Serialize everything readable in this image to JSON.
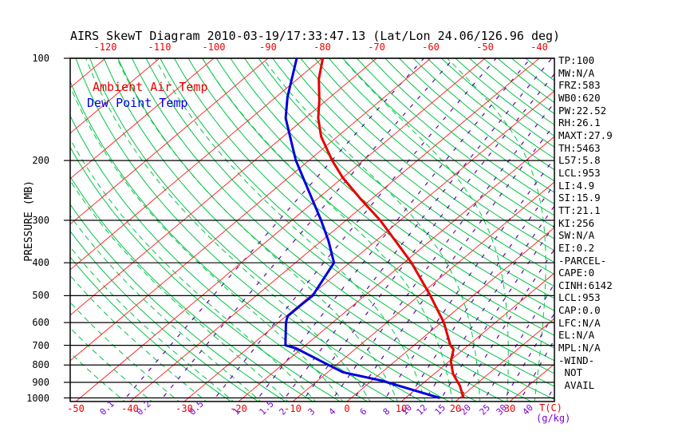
{
  "title": "AIRS SkewT Diagram 2010-03-19/17:33:47.13 (Lat/Lon 24.06/126.96 deg)",
  "legend": {
    "ambient_label": "Ambient Air Temp",
    "dew_label": "Dew Point Temp"
  },
  "axes": {
    "pressure_title": "PRESSURE (MB)",
    "pressure_ticks": [
      100,
      200,
      300,
      400,
      500,
      600,
      700,
      800,
      900,
      1000
    ],
    "top_temp_ticks": [
      -120,
      -110,
      -100,
      -90,
      -80,
      -70,
      -60,
      -50,
      -40
    ],
    "bottom_temp_ticks": [
      -50,
      -40,
      -30,
      -20,
      -10,
      0,
      10,
      20,
      30
    ],
    "temp_unit": "T(C)",
    "mixr_unit": "(g/kg)",
    "mixr_ticks": [
      0.1,
      0.2,
      0.5,
      1,
      1.5,
      2,
      3,
      4,
      6,
      8,
      10,
      12,
      15,
      20,
      25,
      30,
      40
    ]
  },
  "side_panel": [
    "TP:100",
    "MW:N/A",
    "FRZ:583",
    "WB0:620",
    "PW:22.52",
    "RH:26.1",
    "MAXT:27.9",
    "TH:5463",
    "L57:5.8",
    "LCL:953",
    "LI:4.9",
    "SI:15.9",
    "TT:21.1",
    "KI:256",
    "SW:N/A",
    "EI:0.2",
    "-PARCEL-",
    "CAPE:0",
    "CINH:6142",
    "LCL:953",
    "CAP:0.0",
    "LFC:N/A",
    "EL:N/A",
    "MPL:N/A",
    "-WIND-",
    " NOT",
    " AVAIL"
  ],
  "chart_data": {
    "type": "line",
    "variant": "skew-t-log-p",
    "title": "AIRS SkewT Diagram 2010-03-19/17:33:47.13 (Lat/Lon 24.06/126.96 deg)",
    "xlabel": "T(C)",
    "ylabel": "PRESSURE (MB)",
    "x_range_c_at_surface": [
      -50,
      30
    ],
    "pressure_range_mb": [
      100,
      1000
    ],
    "grid_on": true,
    "legend_position": "top-left-inside",
    "series": [
      {
        "name": "Ambient Air Temp",
        "color": "#e60000",
        "points_p_t": [
          [
            100,
            -79.9
          ],
          [
            115,
            -76.1
          ],
          [
            133,
            -71.3
          ],
          [
            150,
            -67.6
          ],
          [
            170,
            -63.0
          ],
          [
            200,
            -55.7
          ],
          [
            225,
            -49.9
          ],
          [
            260,
            -41.9
          ],
          [
            300,
            -33.7
          ],
          [
            350,
            -25.6
          ],
          [
            400,
            -18.6
          ],
          [
            500,
            -7.9
          ],
          [
            600,
            0.5
          ],
          [
            700,
            6.7
          ],
          [
            720,
            8.2
          ],
          [
            780,
            10.3
          ],
          [
            850,
            13.5
          ],
          [
            920,
            17.3
          ],
          [
            1000,
            20.7
          ]
        ]
      },
      {
        "name": "Dew Point Temp",
        "color": "#0000dc",
        "points_p_t": [
          [
            100,
            -84.7
          ],
          [
            130,
            -77.9
          ],
          [
            150,
            -73.6
          ],
          [
            175,
            -67.6
          ],
          [
            200,
            -62.4
          ],
          [
            250,
            -52.6
          ],
          [
            300,
            -44.6
          ],
          [
            345,
            -38.7
          ],
          [
            400,
            -32.9
          ],
          [
            500,
            -29.6
          ],
          [
            530,
            -29.7
          ],
          [
            575,
            -29.7
          ],
          [
            600,
            -28.6
          ],
          [
            700,
            -23.7
          ],
          [
            715,
            -21.0
          ],
          [
            780,
            -13.6
          ],
          [
            840,
            -7.2
          ],
          [
            890,
            1.9
          ],
          [
            1000,
            16.3
          ]
        ]
      }
    ],
    "grid": {
      "isotherm_step_c": 10,
      "isotherm_range_c": [
        -160,
        40
      ],
      "dry_adiabat_theta_k": {
        "min": 250,
        "max": 445,
        "step": 5
      },
      "moist_adiabat_surface_t_c": {
        "min": -40,
        "max": 40,
        "step": 5
      },
      "mixing_ratio_lines_gkg": [
        0.1,
        0.2,
        0.5,
        1,
        1.5,
        2,
        3,
        4,
        6,
        8,
        10,
        12,
        15,
        20,
        25,
        30,
        40
      ]
    },
    "colors": {
      "isotherm": "#ff2e2e",
      "dry_adiabat": "#00c546",
      "moist_adiabat": "#00c546",
      "mixing_ratio": "#6600aa",
      "pressure_lines": "#000000",
      "temperature_curve": "#e60000",
      "dew_point_curve": "#0000dc",
      "top_axis_labels": "#f00000",
      "bottom_temp_labels": "#f00000",
      "mixing_labels": "#7b00d0"
    }
  }
}
